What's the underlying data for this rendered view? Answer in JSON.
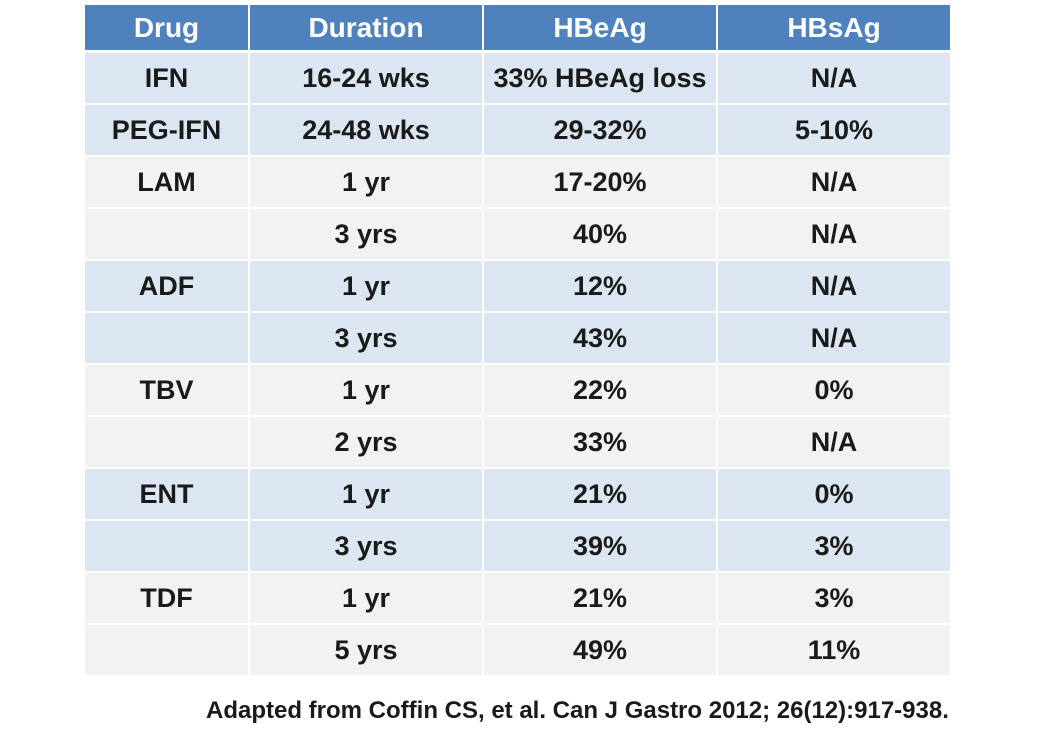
{
  "headers": [
    "Drug",
    "Duration",
    "HBeAg",
    "HBsAg"
  ],
  "rows": [
    {
      "drug": "IFN",
      "duration": "16-24 wks",
      "hbeag": "33% HBeAg loss",
      "hbsag": "N/A",
      "shade": true
    },
    {
      "drug": "PEG-IFN",
      "duration": "24-48 wks",
      "hbeag": "29-32%",
      "hbsag": "5-10%",
      "shade": true
    },
    {
      "drug": "LAM",
      "duration": "1 yr",
      "hbeag": "17-20%",
      "hbsag": "N/A",
      "shade": false
    },
    {
      "drug": "",
      "duration": "3 yrs",
      "hbeag": "40%",
      "hbsag": "N/A",
      "shade": false
    },
    {
      "drug": "ADF",
      "duration": "1 yr",
      "hbeag": "12%",
      "hbsag": "N/A",
      "shade": true
    },
    {
      "drug": "",
      "duration": "3 yrs",
      "hbeag": "43%",
      "hbsag": "N/A",
      "shade": true
    },
    {
      "drug": "TBV",
      "duration": "1 yr",
      "hbeag": "22%",
      "hbsag": "0%",
      "shade": false
    },
    {
      "drug": "",
      "duration": "2 yrs",
      "hbeag": "33%",
      "hbsag": "N/A",
      "shade": false
    },
    {
      "drug": "ENT",
      "duration": "1 yr",
      "hbeag": "21%",
      "hbsag": "0%",
      "shade": true
    },
    {
      "drug": "",
      "duration": "3 yrs",
      "hbeag": "39%",
      "hbsag": "3%",
      "shade": true
    },
    {
      "drug": "TDF",
      "duration": "1 yr",
      "hbeag": "21%",
      "hbsag": "3%",
      "shade": false
    },
    {
      "drug": "",
      "duration": "5 yrs",
      "hbeag": "49%",
      "hbsag": "11%",
      "shade": false
    }
  ],
  "citation": "Adapted from Coffin CS, et al. Can J Gastro 2012; 26(12):917-938.",
  "colors": {
    "header": "#4f81bd",
    "shade": "#dce6f2",
    "plain": "#f2f2f2"
  }
}
